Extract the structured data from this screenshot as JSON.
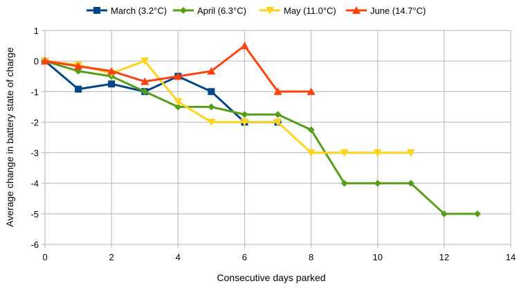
{
  "chart_data": {
    "type": "line",
    "title": "",
    "xlabel": "Consecutive days parked",
    "ylabel": "Average change in battery state of charge",
    "xlim": [
      0,
      14
    ],
    "ylim": [
      -6,
      1
    ],
    "xticks": [
      0,
      2,
      4,
      6,
      8,
      10,
      12,
      14
    ],
    "yticks": [
      1,
      0,
      -1,
      -2,
      -3,
      -4,
      -5,
      -6
    ],
    "grid": true,
    "legend_position": "top",
    "series": [
      {
        "name": "March (3.2°C)",
        "color": "#004586",
        "marker": "square",
        "x": [
          0,
          1,
          2,
          3,
          4,
          5,
          6,
          7
        ],
        "y": [
          0,
          -0.92,
          -0.75,
          -1.0,
          -0.5,
          -1.0,
          -2.0,
          -2.0
        ]
      },
      {
        "name": "April (6.3°C)",
        "color": "#579d1c",
        "marker": "diamond",
        "x": [
          0,
          1,
          2,
          3,
          4,
          5,
          6,
          7,
          8,
          9,
          10,
          11,
          12,
          13
        ],
        "y": [
          0,
          -0.33,
          -0.5,
          -1.0,
          -1.5,
          -1.5,
          -1.75,
          -1.75,
          -2.25,
          -4.0,
          -4.0,
          -4.0,
          -5.0,
          -5.0
        ]
      },
      {
        "name": "May (11.0°C)",
        "color": "#ffd320",
        "marker": "triangle-down",
        "x": [
          0,
          1,
          2,
          3,
          4,
          5,
          6,
          7,
          8,
          9,
          10,
          11
        ],
        "y": [
          0,
          -0.13,
          -0.4,
          0.0,
          -1.33,
          -2.0,
          -2.0,
          -2.0,
          -3.0,
          -3.0,
          -3.0,
          -3.0
        ]
      },
      {
        "name": "June (14.7°C)",
        "color": "#ff420e",
        "marker": "triangle-up",
        "x": [
          0,
          1,
          2,
          3,
          4,
          5,
          6,
          7,
          8
        ],
        "y": [
          0,
          -0.17,
          -0.33,
          -0.67,
          -0.5,
          -0.33,
          0.5,
          -1.0,
          -1.0
        ]
      }
    ]
  }
}
